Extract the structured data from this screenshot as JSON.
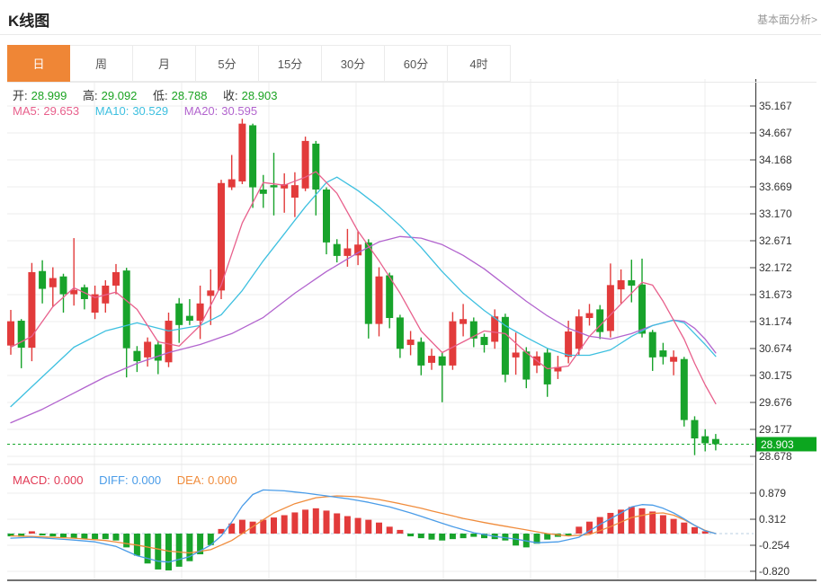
{
  "header": {
    "title": "K线图",
    "analysis_link": "基本面分析>"
  },
  "tabs": {
    "items": [
      {
        "id": "day",
        "label": "日",
        "active": true
      },
      {
        "id": "week",
        "label": "周",
        "active": false
      },
      {
        "id": "month",
        "label": "月",
        "active": false
      },
      {
        "id": "5min",
        "label": "5分",
        "active": false
      },
      {
        "id": "15min",
        "label": "15分",
        "active": false
      },
      {
        "id": "30min",
        "label": "30分",
        "active": false
      },
      {
        "id": "60min",
        "label": "60分",
        "active": false
      },
      {
        "id": "4hour",
        "label": "4时",
        "active": false
      }
    ]
  },
  "legend_ohlc": {
    "open_label": "开:",
    "open": "28.999",
    "high_label": "高:",
    "high": "29.092",
    "low_label": "低:",
    "low": "28.788",
    "close_label": "收:",
    "close": "28.903"
  },
  "legend_ma": {
    "ma5_label": "MA5:",
    "ma5": "29.653",
    "ma10_label": "MA10:",
    "ma10": "30.529",
    "ma20_label": "MA20:",
    "ma20": "30.595"
  },
  "legend_macd": {
    "macd_label": "MACD:",
    "macd": "0.000",
    "diff_label": "DIFF:",
    "diff": "0.000",
    "dea_label": "DEA:",
    "dea": "0.000"
  },
  "colors": {
    "up": "#e23b3b",
    "down": "#18a32b",
    "ma5": "#e8608c",
    "ma10": "#3ec0e0",
    "ma20": "#b264ce",
    "diff": "#4a9ce8",
    "dea": "#f08c3c",
    "tab_active": "#ef8636",
    "price_tag_bg": "#0ca61f",
    "price_line": "#18a82c",
    "axis": "#444444",
    "grid": "#ececec",
    "zero_line": "#b9cfe2",
    "link": "#999999"
  },
  "chart_data": [
    {
      "type": "candlestick",
      "title": "K线图 (日)",
      "legend_position": "top-left",
      "grid": true,
      "y_axis_side": "right",
      "y_ticks": [
        "35.167",
        "34.667",
        "34.168",
        "33.669",
        "33.170",
        "32.671",
        "32.172",
        "31.673",
        "31.174",
        "30.674",
        "30.175",
        "29.676",
        "29.177",
        "28.678"
      ],
      "y_range": [
        28.52,
        35.67
      ],
      "current_price": 28.903,
      "current_price_label": "28.903",
      "candles_ohlc": [
        [
          30.73,
          31.39,
          30.56,
          31.18
        ],
        [
          31.19,
          31.22,
          30.31,
          30.69
        ],
        [
          30.69,
          32.26,
          30.44,
          32.09
        ],
        [
          32.11,
          32.31,
          31.51,
          31.78
        ],
        [
          31.81,
          32.18,
          31.44,
          31.98
        ],
        [
          32.01,
          32.06,
          31.34,
          31.68
        ],
        [
          31.68,
          32.72,
          31.47,
          31.76
        ],
        [
          31.81,
          31.86,
          31.4,
          31.59
        ],
        [
          31.34,
          31.84,
          31.22,
          31.68
        ],
        [
          31.51,
          31.94,
          31.34,
          31.84
        ],
        [
          31.84,
          32.24,
          31.68,
          32.09
        ],
        [
          32.12,
          32.17,
          30.14,
          30.68
        ],
        [
          30.63,
          30.72,
          30.24,
          30.44
        ],
        [
          30.51,
          30.88,
          30.34,
          30.8
        ],
        [
          30.75,
          30.82,
          30.2,
          30.45
        ],
        [
          30.42,
          31.34,
          30.33,
          31.19
        ],
        [
          31.51,
          31.61,
          30.78,
          31.11
        ],
        [
          31.28,
          31.59,
          31.11,
          31.19
        ],
        [
          31.19,
          31.84,
          30.85,
          31.51
        ],
        [
          31.65,
          32.14,
          31.11,
          31.75
        ],
        [
          31.75,
          33.8,
          31.59,
          33.74
        ],
        [
          33.66,
          34.26,
          33.61,
          33.81
        ],
        [
          33.77,
          34.93,
          33.72,
          34.84
        ],
        [
          34.81,
          34.84,
          33.28,
          33.66
        ],
        [
          33.62,
          33.89,
          33.28,
          33.54
        ],
        [
          33.7,
          34.3,
          33.14,
          33.66
        ],
        [
          33.64,
          33.92,
          33.19,
          33.72
        ],
        [
          33.47,
          33.94,
          33.11,
          33.7
        ],
        [
          33.64,
          34.6,
          33.59,
          34.52
        ],
        [
          34.47,
          34.52,
          33.14,
          33.62
        ],
        [
          33.62,
          33.66,
          32.42,
          32.64
        ],
        [
          32.61,
          32.7,
          32.27,
          32.39
        ],
        [
          32.39,
          32.89,
          32.19,
          32.53
        ],
        [
          32.4,
          32.85,
          32.22,
          32.6
        ],
        [
          32.64,
          32.7,
          30.86,
          31.13
        ],
        [
          31.13,
          32.18,
          30.9,
          32.01
        ],
        [
          32.03,
          32.08,
          31.05,
          31.24
        ],
        [
          31.25,
          31.3,
          30.5,
          30.67
        ],
        [
          30.74,
          31.0,
          30.55,
          30.84
        ],
        [
          30.8,
          30.88,
          30.18,
          30.36
        ],
        [
          30.41,
          30.67,
          30.28,
          30.54
        ],
        [
          30.53,
          30.6,
          29.68,
          30.36
        ],
        [
          30.36,
          31.35,
          30.28,
          31.18
        ],
        [
          31.13,
          31.5,
          30.9,
          31.22
        ],
        [
          31.18,
          31.25,
          30.7,
          30.86
        ],
        [
          30.89,
          30.95,
          30.6,
          30.74
        ],
        [
          30.8,
          31.4,
          30.67,
          31.27
        ],
        [
          31.26,
          31.32,
          30.05,
          30.19
        ],
        [
          30.51,
          30.97,
          30.19,
          30.6
        ],
        [
          30.62,
          30.7,
          29.94,
          30.1
        ],
        [
          30.36,
          30.62,
          30.22,
          30.53
        ],
        [
          30.6,
          30.67,
          29.78,
          30.01
        ],
        [
          30.25,
          30.54,
          30.11,
          30.33
        ],
        [
          30.52,
          31.19,
          30.4,
          30.99
        ],
        [
          30.67,
          31.4,
          30.55,
          31.27
        ],
        [
          31.24,
          31.5,
          31.1,
          31.33
        ],
        [
          31.4,
          31.48,
          30.85,
          30.98
        ],
        [
          31.0,
          32.25,
          30.88,
          31.85
        ],
        [
          31.77,
          32.14,
          31.51,
          31.94
        ],
        [
          31.94,
          32.32,
          31.53,
          31.84
        ],
        [
          31.86,
          32.34,
          30.88,
          30.95
        ],
        [
          30.98,
          31.02,
          30.26,
          30.51
        ],
        [
          30.64,
          30.78,
          30.38,
          30.52
        ],
        [
          30.43,
          30.64,
          30.18,
          30.52
        ],
        [
          30.48,
          30.52,
          29.23,
          29.35
        ],
        [
          29.35,
          29.42,
          28.7,
          29.01
        ],
        [
          29.05,
          29.18,
          28.77,
          28.92
        ],
        [
          28.999,
          29.092,
          28.788,
          28.903
        ]
      ],
      "ma5_keypoints": [
        [
          0,
          30.7
        ],
        [
          2,
          30.9
        ],
        [
          4,
          31.45
        ],
        [
          6,
          31.8
        ],
        [
          8,
          31.62
        ],
        [
          10,
          31.72
        ],
        [
          12,
          31.4
        ],
        [
          14,
          30.8
        ],
        [
          16,
          30.72
        ],
        [
          18,
          31.1
        ],
        [
          20,
          31.85
        ],
        [
          22,
          33.0
        ],
        [
          24,
          33.75
        ],
        [
          26,
          33.7
        ],
        [
          28,
          33.85
        ],
        [
          29,
          33.95
        ],
        [
          31,
          33.55
        ],
        [
          33,
          32.85
        ],
        [
          35,
          32.3
        ],
        [
          37,
          31.7
        ],
        [
          39,
          31.0
        ],
        [
          41,
          30.6
        ],
        [
          43,
          30.8
        ],
        [
          45,
          31.0
        ],
        [
          47,
          30.95
        ],
        [
          49,
          30.6
        ],
        [
          51,
          30.3
        ],
        [
          53,
          30.35
        ],
        [
          55,
          30.9
        ],
        [
          57,
          31.3
        ],
        [
          59,
          31.7
        ],
        [
          60,
          31.9
        ],
        [
          61,
          31.85
        ],
        [
          62,
          31.55
        ],
        [
          63,
          31.2
        ],
        [
          64,
          30.85
        ],
        [
          65,
          30.4
        ],
        [
          66,
          30.0
        ],
        [
          67,
          29.653
        ]
      ],
      "ma10_keypoints": [
        [
          0,
          29.6
        ],
        [
          3,
          30.15
        ],
        [
          6,
          30.7
        ],
        [
          9,
          31.0
        ],
        [
          12,
          31.15
        ],
        [
          15,
          31.0
        ],
        [
          18,
          31.1
        ],
        [
          20,
          31.3
        ],
        [
          22,
          31.75
        ],
        [
          24,
          32.3
        ],
        [
          26,
          32.8
        ],
        [
          28,
          33.3
        ],
        [
          30,
          33.75
        ],
        [
          31,
          33.85
        ],
        [
          33,
          33.6
        ],
        [
          35,
          33.3
        ],
        [
          37,
          32.95
        ],
        [
          39,
          32.55
        ],
        [
          41,
          32.1
        ],
        [
          43,
          31.7
        ],
        [
          45,
          31.38
        ],
        [
          47,
          31.1
        ],
        [
          49,
          30.88
        ],
        [
          51,
          30.68
        ],
        [
          53,
          30.55
        ],
        [
          55,
          30.55
        ],
        [
          57,
          30.65
        ],
        [
          59,
          30.9
        ],
        [
          61,
          31.1
        ],
        [
          63,
          31.2
        ],
        [
          64,
          31.15
        ],
        [
          65,
          30.95
        ],
        [
          66,
          30.75
        ],
        [
          67,
          30.529
        ]
      ],
      "ma20_keypoints": [
        [
          0,
          29.3
        ],
        [
          3,
          29.55
        ],
        [
          6,
          29.85
        ],
        [
          9,
          30.15
        ],
        [
          12,
          30.4
        ],
        [
          15,
          30.6
        ],
        [
          18,
          30.75
        ],
        [
          21,
          30.95
        ],
        [
          24,
          31.25
        ],
        [
          27,
          31.7
        ],
        [
          30,
          32.1
        ],
        [
          33,
          32.45
        ],
        [
          35,
          32.65
        ],
        [
          37,
          32.75
        ],
        [
          39,
          32.72
        ],
        [
          41,
          32.6
        ],
        [
          43,
          32.4
        ],
        [
          45,
          32.15
        ],
        [
          47,
          31.85
        ],
        [
          49,
          31.55
        ],
        [
          51,
          31.28
        ],
        [
          53,
          31.05
        ],
        [
          55,
          30.9
        ],
        [
          57,
          30.85
        ],
        [
          59,
          30.95
        ],
        [
          61,
          31.1
        ],
        [
          63,
          31.2
        ],
        [
          64,
          31.18
        ],
        [
          65,
          31.05
        ],
        [
          66,
          30.85
        ],
        [
          67,
          30.595
        ]
      ]
    },
    {
      "type": "bar",
      "title": "MACD",
      "y_ticks": [
        "0.879",
        "0.312",
        "-0.254",
        "-0.820"
      ],
      "y_range": [
        -1.02,
        1.06
      ],
      "zero_line": 0,
      "histogram": [
        -0.06,
        -0.07,
        0.05,
        -0.04,
        -0.06,
        -0.08,
        -0.1,
        -0.11,
        -0.12,
        -0.12,
        -0.15,
        -0.3,
        -0.48,
        -0.65,
        -0.78,
        -0.8,
        -0.72,
        -0.6,
        -0.45,
        -0.25,
        0.1,
        0.22,
        0.3,
        0.26,
        0.3,
        0.35,
        0.4,
        0.46,
        0.52,
        0.55,
        0.5,
        0.44,
        0.38,
        0.34,
        0.3,
        0.24,
        0.15,
        0.08,
        -0.06,
        -0.1,
        -0.13,
        -0.15,
        -0.12,
        -0.1,
        -0.07,
        -0.1,
        -0.12,
        -0.15,
        -0.26,
        -0.3,
        -0.22,
        -0.13,
        -0.07,
        -0.05,
        0.15,
        0.26,
        0.36,
        0.45,
        0.52,
        0.58,
        0.55,
        0.48,
        0.4,
        0.32,
        0.24,
        0.14,
        0.05,
        0.0
      ],
      "diff_keypoints": [
        [
          0,
          -0.1
        ],
        [
          2,
          -0.08
        ],
        [
          4,
          -0.11
        ],
        [
          6,
          -0.14
        ],
        [
          8,
          -0.18
        ],
        [
          10,
          -0.28
        ],
        [
          12,
          -0.48
        ],
        [
          14,
          -0.6
        ],
        [
          15,
          -0.62
        ],
        [
          17,
          -0.5
        ],
        [
          19,
          -0.25
        ],
        [
          20,
          -0.05
        ],
        [
          21,
          0.25
        ],
        [
          22,
          0.6
        ],
        [
          23,
          0.85
        ],
        [
          24,
          0.95
        ],
        [
          26,
          0.93
        ],
        [
          28,
          0.88
        ],
        [
          30,
          0.82
        ],
        [
          32,
          0.76
        ],
        [
          34,
          0.68
        ],
        [
          36,
          0.58
        ],
        [
          38,
          0.45
        ],
        [
          40,
          0.3
        ],
        [
          42,
          0.15
        ],
        [
          44,
          0.02
        ],
        [
          46,
          -0.06
        ],
        [
          48,
          -0.12
        ],
        [
          50,
          -0.2
        ],
        [
          52,
          -0.18
        ],
        [
          54,
          -0.08
        ],
        [
          56,
          0.2
        ],
        [
          58,
          0.45
        ],
        [
          59,
          0.58
        ],
        [
          60,
          0.63
        ],
        [
          61,
          0.62
        ],
        [
          62,
          0.55
        ],
        [
          63,
          0.45
        ],
        [
          64,
          0.32
        ],
        [
          65,
          0.18
        ],
        [
          66,
          0.06
        ],
        [
          67,
          0.0
        ]
      ],
      "dea_keypoints": [
        [
          0,
          -0.05
        ],
        [
          3,
          -0.07
        ],
        [
          6,
          -0.1
        ],
        [
          9,
          -0.15
        ],
        [
          12,
          -0.25
        ],
        [
          15,
          -0.38
        ],
        [
          17,
          -0.42
        ],
        [
          19,
          -0.35
        ],
        [
          21,
          -0.15
        ],
        [
          23,
          0.15
        ],
        [
          25,
          0.45
        ],
        [
          27,
          0.65
        ],
        [
          29,
          0.78
        ],
        [
          31,
          0.82
        ],
        [
          33,
          0.8
        ],
        [
          35,
          0.74
        ],
        [
          37,
          0.65
        ],
        [
          39,
          0.55
        ],
        [
          41,
          0.44
        ],
        [
          43,
          0.33
        ],
        [
          45,
          0.24
        ],
        [
          47,
          0.16
        ],
        [
          49,
          0.08
        ],
        [
          51,
          0.0
        ],
        [
          53,
          -0.05
        ],
        [
          55,
          -0.02
        ],
        [
          57,
          0.15
        ],
        [
          59,
          0.35
        ],
        [
          61,
          0.44
        ],
        [
          62,
          0.45
        ],
        [
          63,
          0.4
        ],
        [
          64,
          0.3
        ],
        [
          65,
          0.18
        ],
        [
          66,
          0.07
        ],
        [
          67,
          0.0
        ]
      ]
    }
  ]
}
